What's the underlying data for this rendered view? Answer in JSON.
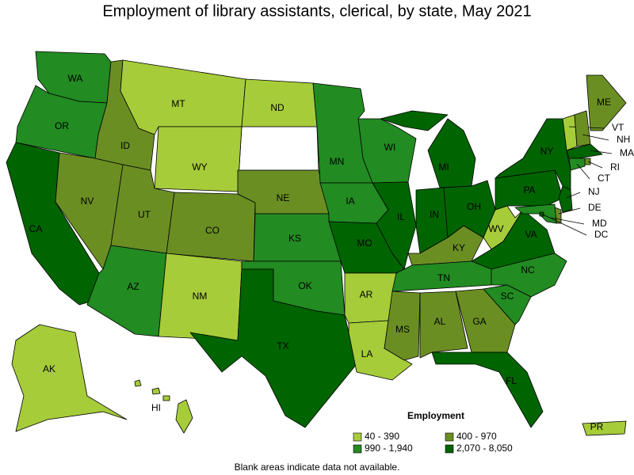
{
  "title": "Employment of library assistants, clerical, by state, May 2021",
  "legend": {
    "title": "Employment",
    "bins": [
      {
        "label": "40 - 390",
        "color": "#a6cc3a"
      },
      {
        "label": "400 - 970",
        "color": "#6b8e23"
      },
      {
        "label": "990 - 1,940",
        "color": "#228b22"
      },
      {
        "label": "2,070 - 8,050",
        "color": "#006400"
      }
    ]
  },
  "states": [
    {
      "label": "WA",
      "bin": 2
    },
    {
      "label": "OR",
      "bin": 2
    },
    {
      "label": "CA",
      "bin": 3
    },
    {
      "label": "NV",
      "bin": 1
    },
    {
      "label": "ID",
      "bin": 1
    },
    {
      "label": "MT",
      "bin": 0
    },
    {
      "label": "WY",
      "bin": 0
    },
    {
      "label": "UT",
      "bin": 1
    },
    {
      "label": "CO",
      "bin": 1
    },
    {
      "label": "AZ",
      "bin": 2
    },
    {
      "label": "NM",
      "bin": 0
    },
    {
      "label": "ND",
      "bin": 0
    },
    {
      "label": "NE",
      "bin": 1
    },
    {
      "label": "KS",
      "bin": 2
    },
    {
      "label": "OK",
      "bin": 2
    },
    {
      "label": "TX",
      "bin": 3
    },
    {
      "label": "MN",
      "bin": 2
    },
    {
      "label": "IA",
      "bin": 2
    },
    {
      "label": "MO",
      "bin": 3
    },
    {
      "label": "AR",
      "bin": 0
    },
    {
      "label": "LA",
      "bin": 0
    },
    {
      "label": "WI",
      "bin": 2
    },
    {
      "label": "IL",
      "bin": 3
    },
    {
      "label": "MS",
      "bin": 1
    },
    {
      "label": "MI",
      "bin": 3
    },
    {
      "label": "IN",
      "bin": 3
    },
    {
      "label": "KY",
      "bin": 1
    },
    {
      "label": "TN",
      "bin": 2
    },
    {
      "label": "AL",
      "bin": 1
    },
    {
      "label": "GA",
      "bin": 1
    },
    {
      "label": "FL",
      "bin": 3
    },
    {
      "label": "OH",
      "bin": 3
    },
    {
      "label": "WV",
      "bin": 0
    },
    {
      "label": "VA",
      "bin": 3
    },
    {
      "label": "NC",
      "bin": 2
    },
    {
      "label": "SC",
      "bin": 2
    },
    {
      "label": "PA",
      "bin": 3
    },
    {
      "label": "NY",
      "bin": 3
    },
    {
      "label": "ME",
      "bin": 1
    },
    {
      "label": "VT",
      "bin": 0
    },
    {
      "label": "NH",
      "bin": 1
    },
    {
      "label": "MA",
      "bin": 3
    },
    {
      "label": "RI",
      "bin": 1
    },
    {
      "label": "CT",
      "bin": 2
    },
    {
      "label": "NJ",
      "bin": 3
    },
    {
      "label": "DE",
      "bin": 1
    },
    {
      "label": "MD",
      "bin": 2
    },
    {
      "label": "DC",
      "bin": 3
    },
    {
      "label": "AK",
      "bin": 0
    },
    {
      "label": "HI",
      "bin": 0
    },
    {
      "label": "PR",
      "bin": 0
    }
  ],
  "note": "Blank areas indicate data not available."
}
